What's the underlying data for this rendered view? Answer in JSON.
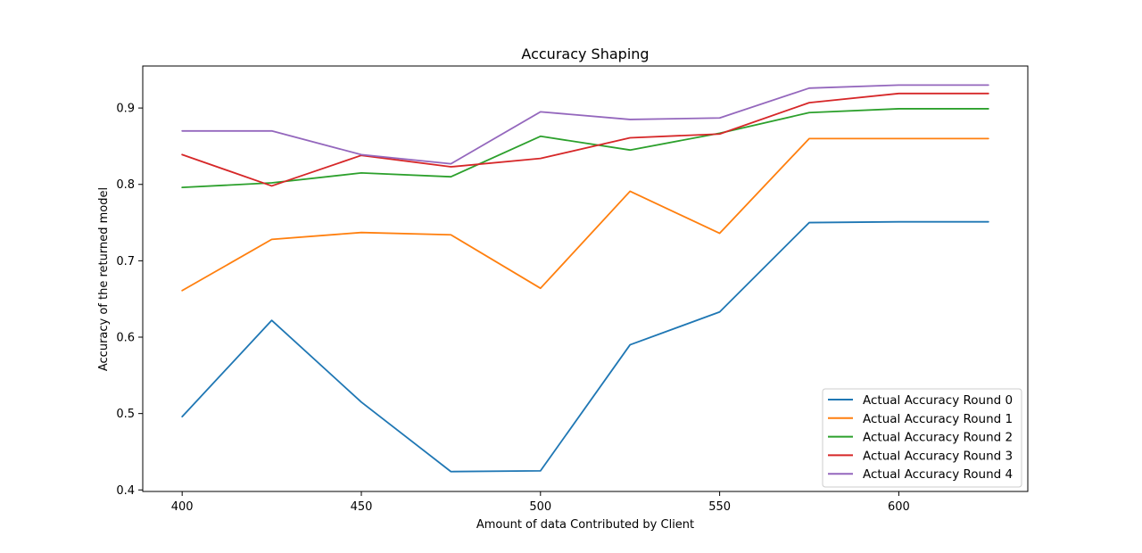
{
  "chart_data": {
    "type": "line",
    "title": "Accuracy Shaping",
    "xlabel": "Amount of data Contributed by Client",
    "ylabel": "Accuracy of the returned model",
    "x": [
      400,
      425,
      450,
      475,
      500,
      525,
      550,
      575,
      600,
      625
    ],
    "xlim": [
      389,
      636
    ],
    "ylim": [
      0.398,
      0.955
    ],
    "xticks": [
      400,
      450,
      500,
      550,
      600
    ],
    "xtick_labels": [
      "400",
      "450",
      "500",
      "550",
      "600"
    ],
    "yticks": [
      0.4,
      0.5,
      0.6,
      0.7,
      0.8,
      0.9
    ],
    "ytick_labels": [
      "0.4",
      "0.5",
      "0.6",
      "0.7",
      "0.8",
      "0.9"
    ],
    "grid": false,
    "legend_position": "bottom-right",
    "series": [
      {
        "name": "Actual Accuracy Round 0",
        "color": "#1f77b4",
        "values": [
          0.496,
          0.622,
          0.515,
          0.424,
          0.425,
          0.59,
          0.633,
          0.75,
          0.751,
          0.751
        ]
      },
      {
        "name": "Actual Accuracy Round 1",
        "color": "#ff7f0e",
        "values": [
          0.661,
          0.728,
          0.737,
          0.734,
          0.664,
          0.791,
          0.736,
          0.86,
          0.86,
          0.86
        ]
      },
      {
        "name": "Actual Accuracy Round 2",
        "color": "#2ca02c",
        "values": [
          0.796,
          0.802,
          0.815,
          0.81,
          0.863,
          0.845,
          0.867,
          0.894,
          0.899,
          0.899
        ]
      },
      {
        "name": "Actual Accuracy Round 3",
        "color": "#d62728",
        "values": [
          0.839,
          0.798,
          0.838,
          0.823,
          0.834,
          0.861,
          0.866,
          0.907,
          0.919,
          0.919
        ]
      },
      {
        "name": "Actual Accuracy Round 4",
        "color": "#9467bd",
        "values": [
          0.87,
          0.87,
          0.839,
          0.827,
          0.895,
          0.885,
          0.887,
          0.926,
          0.93,
          0.93
        ]
      }
    ]
  }
}
